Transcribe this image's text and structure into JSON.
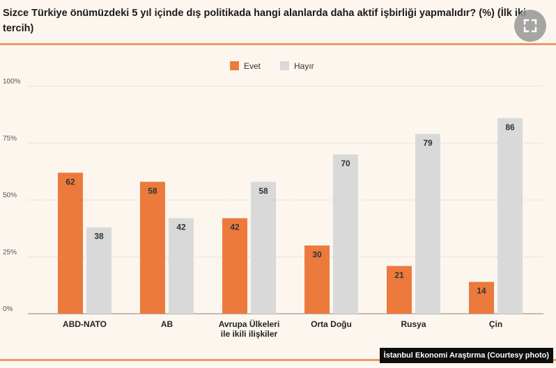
{
  "header": {
    "title": "Sizce Türkiye önümüzdeki 5 yıl içinde dış politikada hangi alanlarda daha aktif işbirliği yapmalıdır? (%) (İlk iki tercih)",
    "expand_icon": "expand-icon"
  },
  "source": {
    "label": "İstanbul Ekonomi Araştırma (Courtesy  photo)"
  },
  "colors": {
    "evet": "#ec7a3c",
    "hayir": "#d9d9d9",
    "accent_rule": "#ed9a62",
    "background": "#fcf6ee"
  },
  "chart_data": {
    "type": "bar",
    "categories": [
      [
        "ABD-NATO"
      ],
      [
        "AB"
      ],
      [
        "Avrupa Ülkeleri",
        "ile ikili ilişkiler"
      ],
      [
        "Orta Doğu"
      ],
      [
        "Rusya"
      ],
      [
        "Çin"
      ]
    ],
    "series": [
      {
        "name": "Evet",
        "values": [
          62,
          58,
          42,
          30,
          21,
          14
        ],
        "color": "#ec7a3c"
      },
      {
        "name": "Hayır",
        "values": [
          38,
          42,
          58,
          70,
          79,
          86
        ],
        "color": "#d9d9d9"
      }
    ],
    "yticks": [
      "0%",
      "25%",
      "50%",
      "75%",
      "100%"
    ],
    "ylim": [
      0,
      100
    ],
    "legend_position": "top-center",
    "grid": true,
    "data_labels": true
  }
}
